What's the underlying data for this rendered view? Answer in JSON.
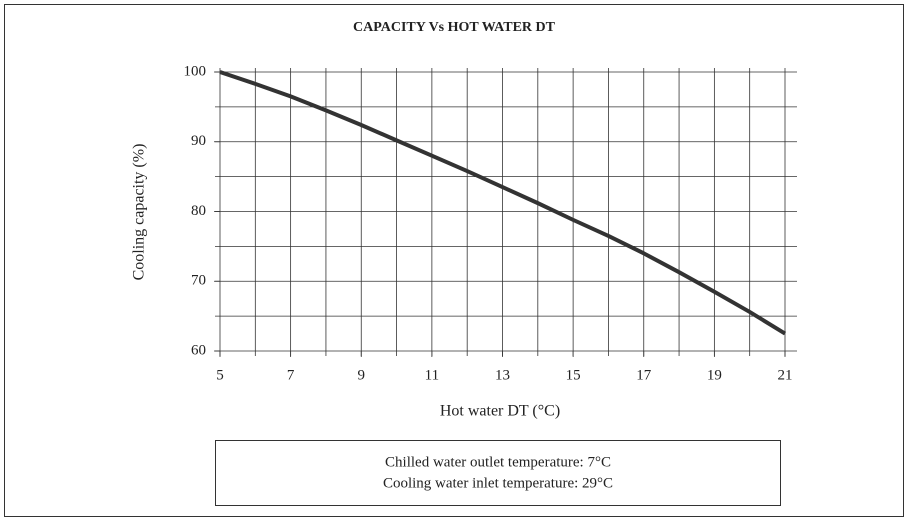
{
  "chart_data": {
    "type": "line",
    "title": "CAPACITY Vs HOT WATER DT",
    "xlabel": "Hot water DT (°C)",
    "ylabel": "Cooling capacity (%)",
    "x": [
      5,
      6,
      7,
      8,
      9,
      10,
      11,
      12,
      13,
      14,
      15,
      16,
      17,
      18,
      19,
      20,
      21
    ],
    "series": [
      {
        "name": "Cooling capacity",
        "color": "#333333",
        "values": [
          100,
          98.3,
          96.5,
          94.5,
          92.4,
          90.2,
          88,
          85.8,
          83.5,
          81.2,
          78.8,
          76.5,
          74,
          71.3,
          68.5,
          65.6,
          62.5
        ]
      }
    ],
    "xlim": [
      5,
      21
    ],
    "xticks": [
      5,
      7,
      9,
      11,
      13,
      15,
      17,
      19,
      21
    ],
    "ylim": [
      60,
      100
    ],
    "yticks": [
      60,
      70,
      80,
      90,
      100
    ],
    "xgrid": [
      5,
      6,
      7,
      8,
      9,
      10,
      11,
      12,
      13,
      14,
      15,
      16,
      17,
      18,
      19,
      20,
      21
    ],
    "ygrid": [
      60,
      65,
      70,
      75,
      80,
      85,
      90,
      95,
      100
    ],
    "grid": true,
    "annotations": [
      "Chilled water outlet temperature: 7°C",
      "Cooling water inlet temperature: 29°C"
    ]
  }
}
